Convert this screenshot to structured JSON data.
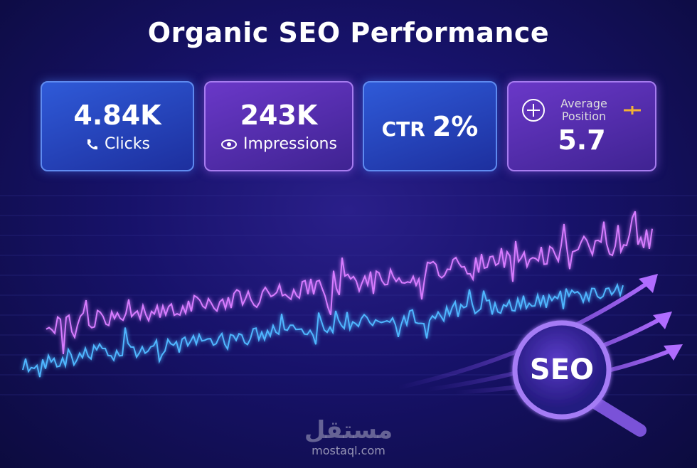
{
  "header": {
    "title": "Organic SEO Performance"
  },
  "cards": [
    {
      "value": "4.84K",
      "label": "Clicks"
    },
    {
      "value": "243K",
      "label": "Impressions"
    },
    {
      "label": "CTR",
      "value": "2%"
    },
    {
      "label": "Average Position",
      "value": "5.7"
    }
  ],
  "badge": {
    "text": "SEO"
  },
  "watermark": {
    "logo": "مستقل",
    "site": "mostaql.com"
  }
}
